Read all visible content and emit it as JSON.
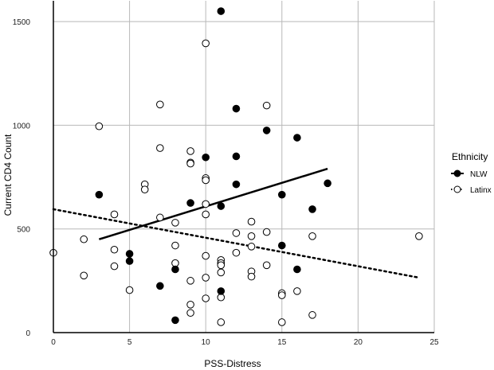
{
  "chart_data": {
    "type": "scatter",
    "xlabel": "PSS-Distress",
    "ylabel": "Current CD4 Count",
    "xlim": [
      0,
      25
    ],
    "ylim": [
      0,
      1600
    ],
    "xticks": [
      0,
      5,
      10,
      15,
      20,
      25
    ],
    "yticks": [
      0,
      500,
      1000,
      1500
    ],
    "grid": true,
    "legend": {
      "title": "Ethnicity",
      "placement": "right",
      "entries": [
        "NLW",
        "Latinx"
      ]
    },
    "series": [
      {
        "name": "NLW",
        "marker": "filled-circle",
        "color": "#000000",
        "line_style": "solid",
        "fit": {
          "x": [
            3,
            18
          ],
          "y": [
            450,
            790
          ]
        },
        "points": [
          [
            11,
            1550
          ],
          [
            12,
            1080
          ],
          [
            14,
            975
          ],
          [
            16,
            940
          ],
          [
            10,
            845
          ],
          [
            12,
            850
          ],
          [
            18,
            720
          ],
          [
            12,
            715
          ],
          [
            15,
            665
          ],
          [
            3,
            665
          ],
          [
            9,
            625
          ],
          [
            11,
            610
          ],
          [
            17,
            595
          ],
          [
            5,
            380
          ],
          [
            5,
            345
          ],
          [
            15,
            420
          ],
          [
            8,
            305
          ],
          [
            16,
            305
          ],
          [
            7,
            225
          ],
          [
            11,
            200
          ],
          [
            8,
            60
          ]
        ]
      },
      {
        "name": "Latinx",
        "marker": "open-circle",
        "color": "#000000",
        "line_style": "dotted",
        "fit": {
          "x": [
            0,
            24
          ],
          "y": [
            595,
            265
          ]
        },
        "points": [
          [
            10,
            1395
          ],
          [
            7,
            1100
          ],
          [
            14,
            1095
          ],
          [
            3,
            995
          ],
          [
            7,
            890
          ],
          [
            9,
            875
          ],
          [
            9,
            820
          ],
          [
            9,
            815
          ],
          [
            10,
            745
          ],
          [
            10,
            735
          ],
          [
            6,
            715
          ],
          [
            6,
            690
          ],
          [
            10,
            620
          ],
          [
            4,
            570
          ],
          [
            10,
            570
          ],
          [
            7,
            555
          ],
          [
            13,
            535
          ],
          [
            8,
            530
          ],
          [
            12,
            480
          ],
          [
            14,
            485
          ],
          [
            13,
            465
          ],
          [
            17,
            465
          ],
          [
            24,
            465
          ],
          [
            2,
            450
          ],
          [
            8,
            420
          ],
          [
            13,
            415
          ],
          [
            4,
            400
          ],
          [
            0,
            385
          ],
          [
            12,
            385
          ],
          [
            10,
            370
          ],
          [
            11,
            350
          ],
          [
            11,
            335
          ],
          [
            8,
            335
          ],
          [
            11,
            325
          ],
          [
            14,
            325
          ],
          [
            4,
            320
          ],
          [
            11,
            290
          ],
          [
            13,
            295
          ],
          [
            2,
            275
          ],
          [
            10,
            265
          ],
          [
            13,
            270
          ],
          [
            9,
            250
          ],
          [
            5,
            205
          ],
          [
            16,
            200
          ],
          [
            15,
            190
          ],
          [
            15,
            180
          ],
          [
            10,
            165
          ],
          [
            11,
            170
          ],
          [
            9,
            135
          ],
          [
            9,
            95
          ],
          [
            17,
            85
          ],
          [
            11,
            50
          ],
          [
            15,
            50
          ]
        ]
      }
    ]
  }
}
